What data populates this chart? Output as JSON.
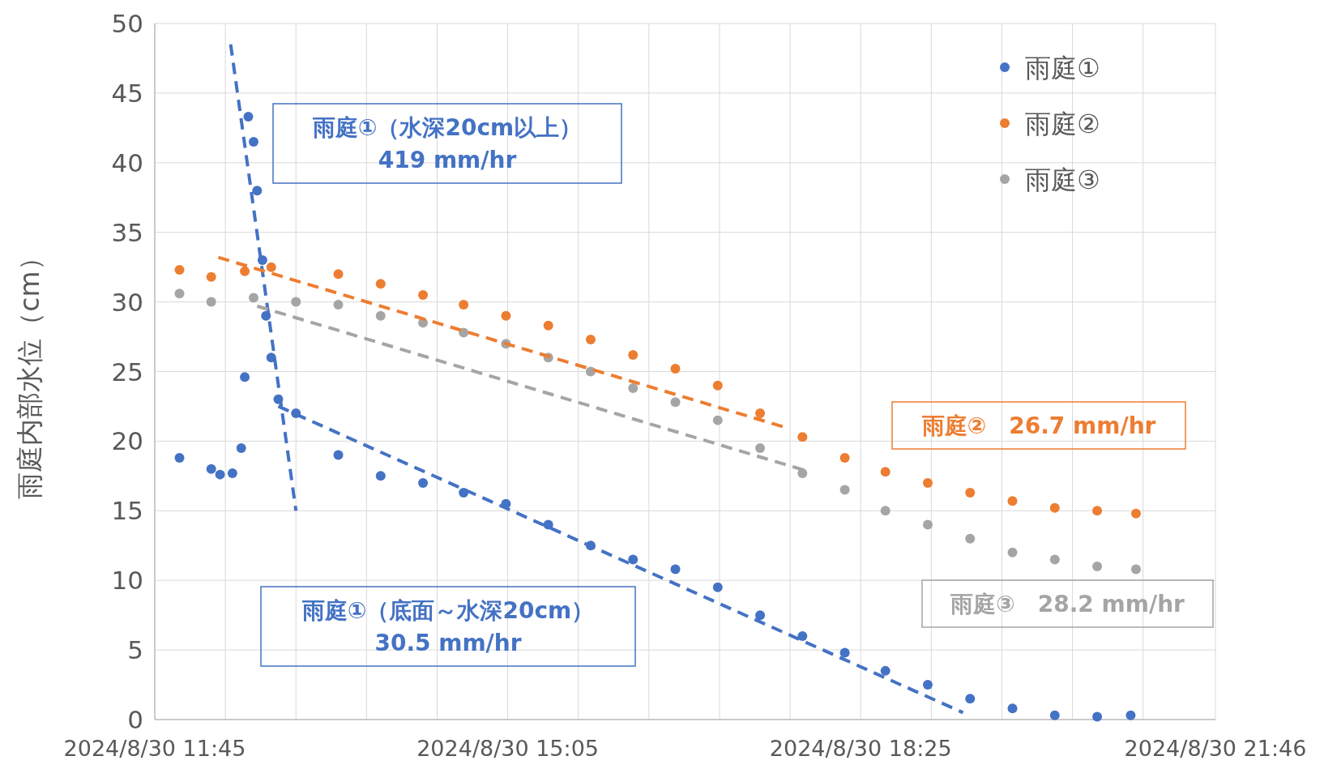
{
  "chart_data": {
    "type": "scatter",
    "ylabel": "雨庭内部水位（cm）",
    "xlim": [
      "2024-08-30T11:45",
      "2024-08-30T21:46"
    ],
    "xticks": [
      {
        "value": "2024-08-30T11:45",
        "label": "2024/8/30 11:45"
      },
      {
        "value": "2024-08-30T12:25",
        "label": null
      },
      {
        "value": "2024-08-30T13:05",
        "label": null
      },
      {
        "value": "2024-08-30T13:45",
        "label": null
      },
      {
        "value": "2024-08-30T14:25",
        "label": null
      },
      {
        "value": "2024-08-30T15:05",
        "label": "2024/8/30 15:05"
      },
      {
        "value": "2024-08-30T15:45",
        "label": null
      },
      {
        "value": "2024-08-30T16:25",
        "label": null
      },
      {
        "value": "2024-08-30T17:05",
        "label": null
      },
      {
        "value": "2024-08-30T17:45",
        "label": null
      },
      {
        "value": "2024-08-30T18:25",
        "label": "2024/8/30 18:25"
      },
      {
        "value": "2024-08-30T19:05",
        "label": null
      },
      {
        "value": "2024-08-30T19:45",
        "label": null
      },
      {
        "value": "2024-08-30T20:25",
        "label": null
      },
      {
        "value": "2024-08-30T21:05",
        "label": null
      },
      {
        "value": "2024-08-30T21:46",
        "label": "2024/8/30 21:46"
      }
    ],
    "ylim": [
      0,
      50
    ],
    "yticks": [
      0,
      5,
      10,
      15,
      20,
      25,
      30,
      35,
      40,
      45,
      50
    ],
    "grid": true,
    "legend": "top right",
    "marker": "circle",
    "annotations": [
      "雨庭①（水深20cm以上）\n419 mm/hr",
      "雨庭①（底面～水深20cm）\n30.5 mm/hr",
      "雨庭②　26.7 mm/hr",
      "雨庭③　28.2 mm/hr"
    ],
    "series": [
      {
        "name": "雨庭①",
        "type": "scatter",
        "color": "#4472c4",
        "x": [
          "2024-08-30T11:59",
          "2024-08-30T12:17",
          "2024-08-30T12:22",
          "2024-08-30T12:29",
          "2024-08-30T12:34",
          "2024-08-30T12:36",
          "2024-08-30T12:38",
          "2024-08-30T12:41",
          "2024-08-30T12:43",
          "2024-08-30T12:46",
          "2024-08-30T12:48",
          "2024-08-30T12:51",
          "2024-08-30T12:55",
          "2024-08-30T13:05",
          "2024-08-30T13:29",
          "2024-08-30T13:53",
          "2024-08-30T14:17",
          "2024-08-30T14:40",
          "2024-08-30T15:04",
          "2024-08-30T15:28",
          "2024-08-30T15:52",
          "2024-08-30T16:16",
          "2024-08-30T16:40",
          "2024-08-30T17:04",
          "2024-08-30T17:28",
          "2024-08-30T17:52",
          "2024-08-30T18:16",
          "2024-08-30T18:39",
          "2024-08-30T19:03",
          "2024-08-30T19:27",
          "2024-08-30T19:51",
          "2024-08-30T20:15",
          "2024-08-30T20:39",
          "2024-08-30T20:58"
        ],
        "values": [
          18.8,
          18,
          17.6,
          17.7,
          19.5,
          24.6,
          43.3,
          41.5,
          38,
          33,
          29,
          26,
          23,
          22,
          19,
          17.5,
          17,
          16.3,
          15.5,
          14,
          12.5,
          11.5,
          10.8,
          9.5,
          7.5,
          6,
          4.8,
          3.5,
          2.5,
          1.5,
          0.8,
          0.3,
          0.2,
          0.3
        ]
      },
      {
        "name": "雨庭②",
        "type": "scatter",
        "color": "#ed7d31",
        "x": [
          "2024-08-30T11:59",
          "2024-08-30T12:17",
          "2024-08-30T12:36",
          "2024-08-30T12:51",
          "2024-08-30T13:29",
          "2024-08-30T13:53",
          "2024-08-30T14:17",
          "2024-08-30T14:40",
          "2024-08-30T15:04",
          "2024-08-30T15:28",
          "2024-08-30T15:52",
          "2024-08-30T16:16",
          "2024-08-30T16:40",
          "2024-08-30T17:04",
          "2024-08-30T17:28",
          "2024-08-30T17:52",
          "2024-08-30T18:16",
          "2024-08-30T18:39",
          "2024-08-30T19:03",
          "2024-08-30T19:27",
          "2024-08-30T19:51",
          "2024-08-30T20:15",
          "2024-08-30T20:39",
          "2024-08-30T21:01"
        ],
        "values": [
          32.3,
          31.8,
          32.2,
          32.5,
          32,
          31.3,
          30.5,
          29.8,
          29,
          28.3,
          27.3,
          26.2,
          25.2,
          24,
          22,
          20.3,
          18.8,
          17.8,
          17,
          16.3,
          15.7,
          15.2,
          15,
          14.8
        ]
      },
      {
        "name": "雨庭③",
        "type": "scatter",
        "color": "#a5a5a5",
        "x": [
          "2024-08-30T11:59",
          "2024-08-30T12:17",
          "2024-08-30T12:41",
          "2024-08-30T13:05",
          "2024-08-30T13:29",
          "2024-08-30T13:53",
          "2024-08-30T14:17",
          "2024-08-30T14:40",
          "2024-08-30T15:04",
          "2024-08-30T15:28",
          "2024-08-30T15:52",
          "2024-08-30T16:16",
          "2024-08-30T16:40",
          "2024-08-30T17:04",
          "2024-08-30T17:28",
          "2024-08-30T17:52",
          "2024-08-30T18:16",
          "2024-08-30T18:39",
          "2024-08-30T19:03",
          "2024-08-30T19:27",
          "2024-08-30T19:51",
          "2024-08-30T20:15",
          "2024-08-30T20:39",
          "2024-08-30T21:01"
        ],
        "values": [
          30.6,
          30,
          30.3,
          30,
          29.8,
          29,
          28.5,
          27.8,
          27,
          26,
          25,
          23.8,
          22.8,
          21.5,
          19.5,
          17.7,
          16.5,
          15,
          14,
          13,
          12,
          11.5,
          11,
          10.8
        ]
      },
      {
        "type": "line",
        "line_style": "dashed",
        "marker": "none",
        "color": "#4472c4",
        "x": [
          "2024-08-30T12:28",
          "2024-08-30T13:05"
        ],
        "values": [
          48.5,
          15
        ]
      },
      {
        "type": "line",
        "line_style": "dashed",
        "marker": "none",
        "color": "#4472c4",
        "x": [
          "2024-08-30T12:55",
          "2024-08-30T19:23"
        ],
        "values": [
          22.5,
          0.5
        ]
      },
      {
        "type": "line",
        "line_style": "dashed",
        "marker": "none",
        "color": "#ed7d31",
        "x": [
          "2024-08-30T12:21",
          "2024-08-30T17:42"
        ],
        "values": [
          33.2,
          21
        ]
      },
      {
        "type": "line",
        "line_style": "dashed",
        "marker": "none",
        "color": "#a5a5a5",
        "x": [
          "2024-08-30T12:43",
          "2024-08-30T17:56"
        ],
        "values": [
          29.7,
          17.8
        ]
      }
    ]
  }
}
